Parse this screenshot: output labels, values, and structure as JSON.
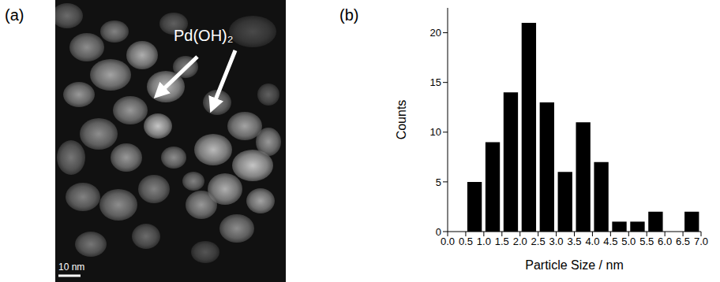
{
  "panels": {
    "a": {
      "label": "(a)",
      "annotation": "Pd(OH)₂",
      "scale_bar": "10 nm"
    },
    "b": {
      "label": "(b)"
    }
  },
  "chart_data": {
    "type": "histogram",
    "x_label": "Particle Size / nm",
    "y_label": "Counts",
    "bins": [
      0.5,
      1.0,
      1.5,
      2.0,
      2.5,
      3.0,
      3.5,
      4.0,
      4.5,
      5.0,
      5.5,
      6.0,
      6.5,
      7.0
    ],
    "values": [
      5,
      9,
      14,
      21,
      13,
      6,
      11,
      7,
      1,
      1,
      2,
      0,
      2
    ],
    "color": "#000000",
    "xlim": [
      0,
      7
    ],
    "xticks": [
      {
        "value": 0,
        "label": "0.0"
      },
      0.5,
      {
        "value": 1,
        "label": "1.0"
      },
      1.5,
      {
        "value": 2,
        "label": "2.0"
      },
      2.5,
      {
        "value": 3,
        "label": "3.0"
      },
      3.5,
      {
        "value": 4,
        "label": "4.0"
      },
      4.5,
      {
        "value": 5,
        "label": "5.0"
      },
      5.5,
      {
        "value": 6,
        "label": "6.0"
      },
      6.5,
      {
        "value": 7,
        "label": "7.0"
      }
    ],
    "ylim": [
      0,
      22.5
    ],
    "yticks": [
      0,
      5,
      10,
      15,
      20
    ],
    "grid": false
  }
}
